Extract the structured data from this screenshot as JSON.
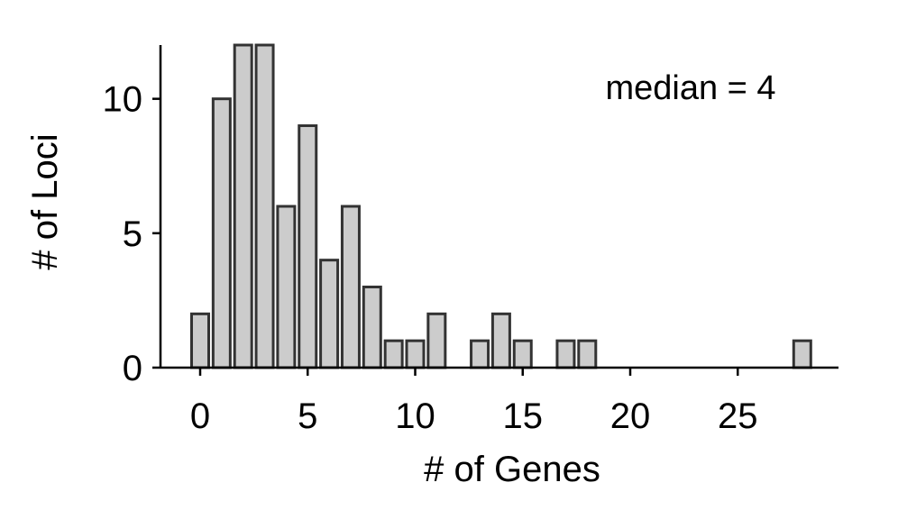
{
  "chart_data": {
    "type": "bar",
    "title": "",
    "xlabel": "# of Genes",
    "ylabel": "# of Loci",
    "annotation": "median = 4",
    "x": [
      0,
      1,
      2,
      3,
      4,
      5,
      6,
      7,
      8,
      9,
      10,
      11,
      12,
      13,
      14,
      15,
      16,
      17,
      18,
      19,
      20,
      21,
      22,
      23,
      24,
      25,
      26,
      27,
      28
    ],
    "values": [
      2,
      10,
      12,
      12,
      6,
      9,
      4,
      6,
      3,
      1,
      1,
      2,
      0,
      1,
      2,
      1,
      0,
      1,
      1,
      0,
      0,
      0,
      0,
      0,
      0,
      0,
      0,
      0,
      1
    ],
    "xlim": [
      -0.5,
      29.5
    ],
    "ylim": [
      0,
      12
    ],
    "xticks": [
      0,
      5,
      10,
      15,
      20,
      25
    ],
    "yticks": [
      0,
      5,
      10
    ],
    "grid": false,
    "legend": "none",
    "colors": {
      "bar_fill": "#cccccc",
      "bar_edge": "#333333",
      "axis": "#000000"
    }
  }
}
